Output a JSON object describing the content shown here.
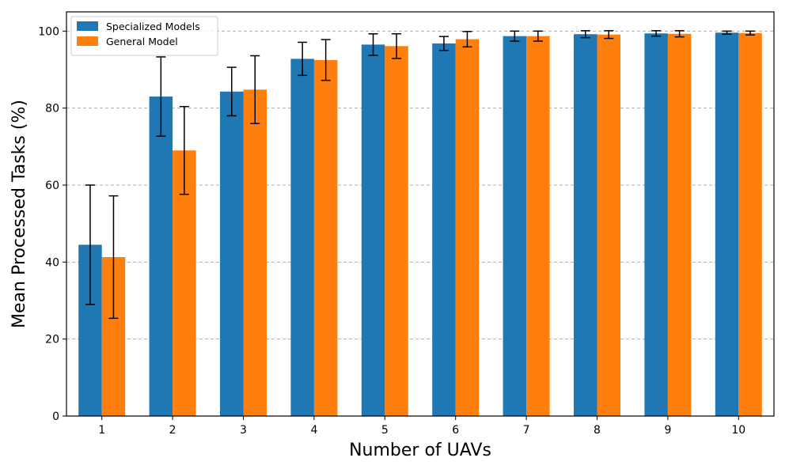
{
  "chart_data": {
    "type": "bar",
    "title": "",
    "xlabel": "Number of UAVs",
    "ylabel": "Mean Processed Tasks (%)",
    "categories": [
      "1",
      "2",
      "3",
      "4",
      "5",
      "6",
      "7",
      "8",
      "9",
      "10"
    ],
    "ylim": [
      0,
      105
    ],
    "yticks": [
      0,
      20,
      40,
      60,
      80,
      100
    ],
    "grid": "y-dashed",
    "legend_position": "top-left",
    "series": [
      {
        "name": "Specialized Models",
        "color": "#1f77b4",
        "values": [
          44.5,
          83.0,
          84.3,
          92.8,
          96.5,
          96.8,
          98.7,
          99.2,
          99.4,
          99.6
        ],
        "errors": [
          15.5,
          10.3,
          6.3,
          4.3,
          2.8,
          1.8,
          1.3,
          0.9,
          0.7,
          0.4
        ]
      },
      {
        "name": "General Model",
        "color": "#ff7f0e",
        "values": [
          41.3,
          69.0,
          84.8,
          92.5,
          96.1,
          97.9,
          98.7,
          99.1,
          99.3,
          99.5
        ],
        "errors": [
          15.9,
          11.4,
          8.8,
          5.3,
          3.2,
          2.0,
          1.3,
          1.0,
          0.8,
          0.5
        ]
      }
    ]
  }
}
